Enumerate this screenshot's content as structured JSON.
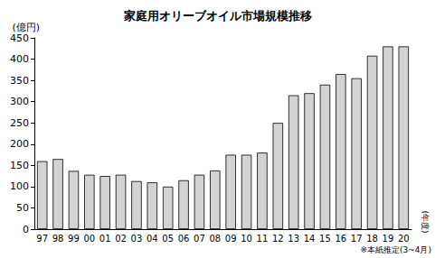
{
  "chart_data": {
    "type": "bar",
    "title": "家庭用オリーブオイル市場規模推移",
    "ylabel": "(億円)",
    "xlabel": "(年度)",
    "note": "※本紙推定(3~4月)",
    "categories": [
      "97",
      "98",
      "99",
      "00",
      "01",
      "02",
      "03",
      "04",
      "05",
      "06",
      "07",
      "08",
      "09",
      "10",
      "11",
      "12",
      "13",
      "14",
      "15",
      "16",
      "17",
      "18",
      "19",
      "20"
    ],
    "values": [
      160,
      165,
      137,
      128,
      125,
      128,
      113,
      110,
      100,
      115,
      128,
      138,
      175,
      175,
      180,
      250,
      315,
      320,
      340,
      365,
      355,
      408,
      430,
      430
    ],
    "color": "#d3d3d3",
    "ylim": [
      0,
      450
    ],
    "yticks": [
      0,
      50,
      100,
      150,
      200,
      250,
      300,
      350,
      400,
      450
    ],
    "grid": false
  }
}
